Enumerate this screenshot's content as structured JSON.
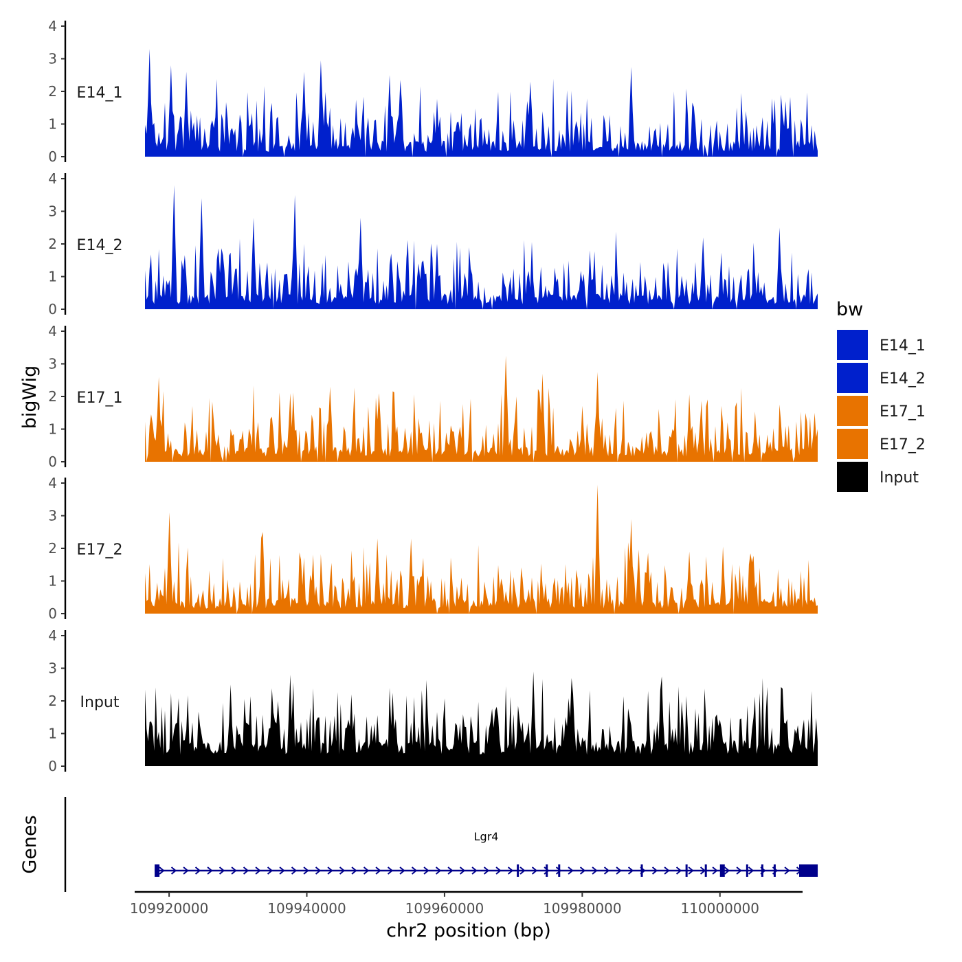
{
  "colors": {
    "E14_1": "#0020CC",
    "E14_2": "#0020CC",
    "E17_1": "#E87300",
    "E17_2": "#E87300",
    "Input": "#000000",
    "gene": "#00008B"
  },
  "chart_data": {
    "type": "area",
    "title": "",
    "ylabel": "bigWig",
    "xlabel": "chr2 position (bp)",
    "ylim": [
      0,
      4
    ],
    "yticks": [
      "0",
      "1",
      "2",
      "3",
      "4"
    ],
    "xlim": [
      109915000,
      110012000
    ],
    "xtick_values": [
      109920000,
      109940000,
      109960000,
      109980000,
      110000000
    ],
    "xtick_labels": [
      "109920000",
      "109940000",
      "109960000",
      "109980000",
      "110000000"
    ],
    "coverage_range": [
      109916500,
      110014200
    ],
    "legend": {
      "title": "bw",
      "entries": [
        "E14_1",
        "E14_2",
        "E17_1",
        "E17_2",
        "Input"
      ]
    },
    "series": [
      {
        "name": "E14_1",
        "peaks": [
          [
            109917100,
            3.3
          ],
          [
            109920200,
            2.8
          ],
          [
            109922500,
            2.6
          ],
          [
            109939500,
            2.6
          ],
          [
            109942000,
            2.95
          ],
          [
            109952000,
            2.5
          ],
          [
            109953500,
            2.35
          ],
          [
            109987000,
            2.75
          ],
          [
            109972500,
            2.3
          ],
          [
            110009500,
            1.7
          ]
        ]
      },
      {
        "name": "E14_2",
        "peaks": [
          [
            109920800,
            3.8
          ],
          [
            109924800,
            3.4
          ],
          [
            109938200,
            3.5
          ],
          [
            109932200,
            2.8
          ],
          [
            109947800,
            2.8
          ],
          [
            110008700,
            2.5
          ],
          [
            109997500,
            2.2
          ],
          [
            109958800,
            2.0
          ]
        ]
      },
      {
        "name": "E17_1",
        "peaks": [
          [
            109918500,
            2.6
          ],
          [
            109968800,
            3.25
          ],
          [
            109974300,
            2.7
          ],
          [
            109982300,
            2.75
          ],
          [
            109943300,
            2.3
          ],
          [
            109937500,
            2.1
          ],
          [
            109950500,
            2.1
          ],
          [
            110013800,
            1.5
          ]
        ]
      },
      {
        "name": "E17_2",
        "peaks": [
          [
            109920000,
            3.1
          ],
          [
            109933700,
            2.5
          ],
          [
            109982200,
            3.95
          ],
          [
            109987000,
            2.9
          ],
          [
            109950200,
            2.3
          ],
          [
            109955200,
            2.3
          ],
          [
            109995500,
            1.9
          ]
        ]
      },
      {
        "name": "Input",
        "peaks": [
          [
            109937700,
            2.8
          ],
          [
            109973000,
            2.9
          ],
          [
            109978500,
            2.7
          ],
          [
            109991500,
            2.75
          ],
          [
            109946500,
            2.2
          ],
          [
            109952500,
            2.25
          ],
          [
            109929000,
            2.5
          ]
        ]
      }
    ],
    "genes": {
      "label": "Genes",
      "items": [
        {
          "name": "Lgr4",
          "start": 109917900,
          "end": 110014200,
          "strand": "+",
          "exons": [
            [
              109917900,
              109918600
            ],
            [
              109970500,
              109970800
            ],
            [
              109974700,
              109975000
            ],
            [
              109976500,
              109976800
            ],
            [
              109988500,
              109988800
            ],
            [
              109995000,
              109995300
            ],
            [
              109997800,
              109998100
            ],
            [
              110000000,
              110000700
            ],
            [
              110003800,
              110004100
            ],
            [
              110006000,
              110006300
            ],
            [
              110007800,
              110008100
            ],
            [
              110011500,
              110014200
            ]
          ]
        }
      ]
    }
  }
}
